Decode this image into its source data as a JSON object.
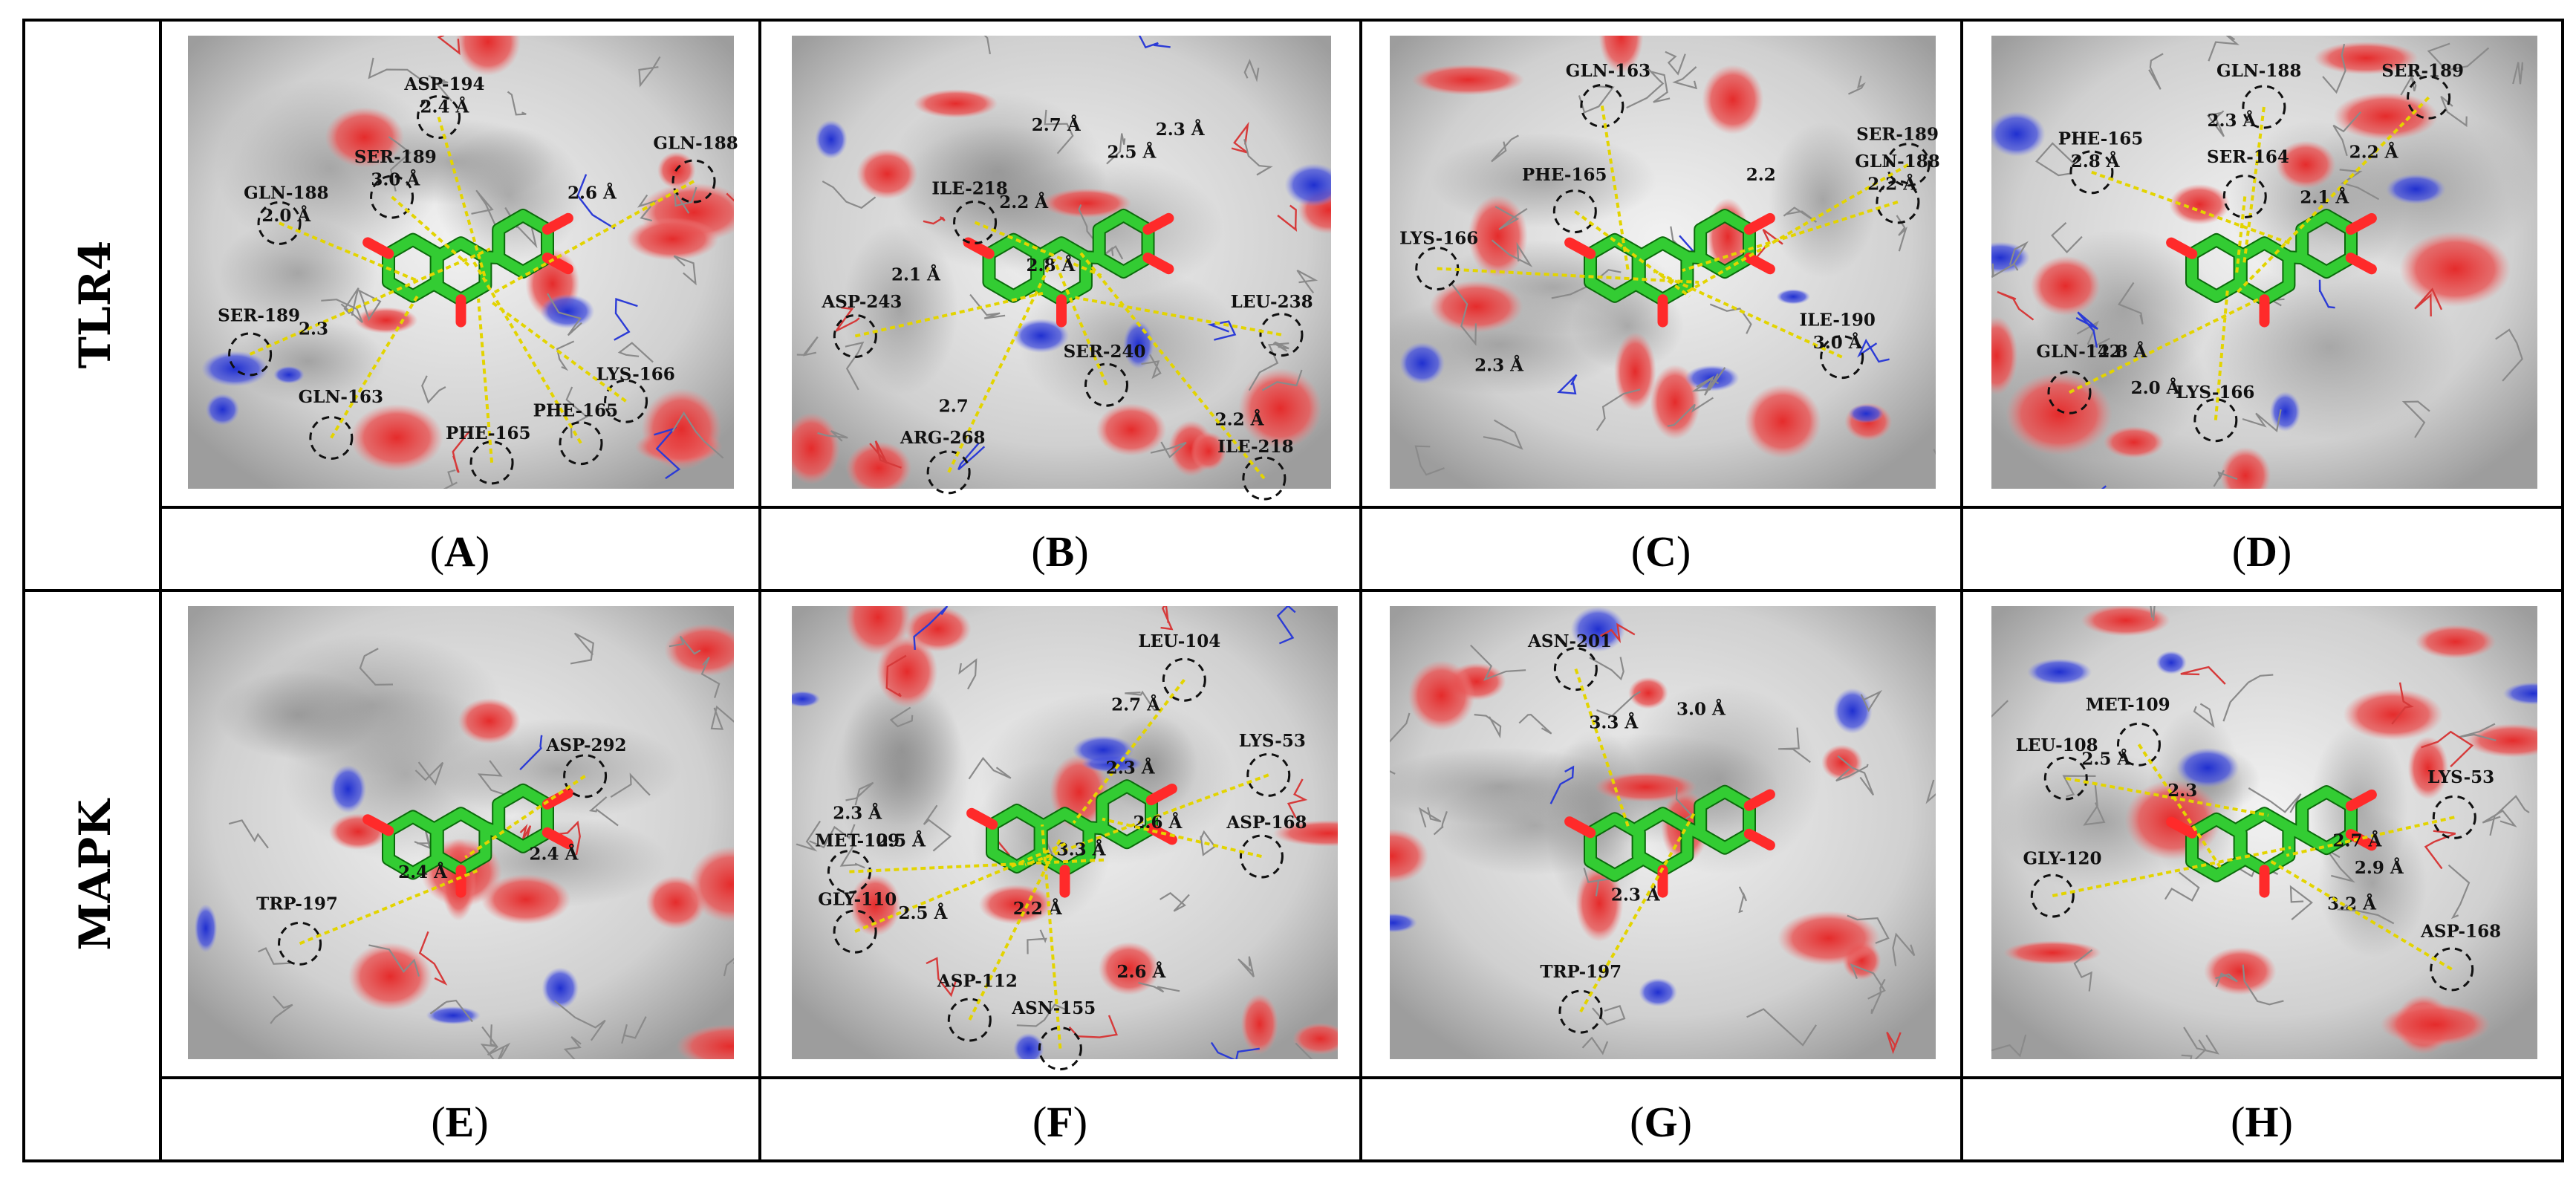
{
  "rows": [
    {
      "title": "TLR4"
    },
    {
      "title": "MAPK"
    }
  ],
  "panels": [
    {
      "label": "A",
      "residues": [
        "ASP-194",
        "2.4 Å",
        "GLN-188",
        "SER-189",
        "3.0 Å",
        "GLN-188",
        "2.0 Å",
        "2.6 Å",
        "SER-189",
        "2.3",
        "GLN-163",
        "PHE-165",
        "PHE-165",
        "LYS-166"
      ]
    },
    {
      "label": "B",
      "residues": [
        "2.5 Å",
        "2.7 Å",
        "2.3 Å",
        "ILE-218",
        "2.2 Å",
        "2.8 Å",
        "ASP-243",
        "2.1 Å",
        "LEU-238",
        "SER-240",
        "2.7",
        "ARG-268",
        "2.2 Å",
        "ILE-218"
      ]
    },
    {
      "label": "C",
      "residues": [
        "GLN-163",
        "SER-189",
        "2.2",
        "GLN-188",
        "2.2 Å",
        "PHE-165",
        "LYS-166",
        "ILE-190",
        "3.0 Å",
        "2.3 Å"
      ]
    },
    {
      "label": "D",
      "residues": [
        "GLN-188",
        "SER-189",
        "2.3 Å",
        "2.2 Å",
        "PHE-165",
        "2.8 Å",
        "SER-164",
        "2.1 Å",
        "GLN-142",
        "2.8 Å",
        "2.0 Å",
        "LYS-166"
      ]
    },
    {
      "label": "E",
      "residues": [
        "ASP-292",
        "2.4 Å",
        "2.4 Å",
        "TRP-197"
      ]
    },
    {
      "label": "F",
      "residues": [
        "LEU-104",
        "2.7 Å",
        "LYS-53",
        "2.3 Å",
        "2.6 Å",
        "ASP-168",
        "2.3 Å",
        "MET-109",
        "2.5 Å",
        "3.3 Å",
        "GLY-110",
        "2.5 Å",
        "2.2 Å",
        "ASP-112",
        "ASN-155",
        "2.6 Å"
      ]
    },
    {
      "label": "G",
      "residues": [
        "ASN-201",
        "3.3 Å",
        "3.0 Å",
        "2.3 Å",
        "TRP-197"
      ]
    },
    {
      "label": "H",
      "residues": [
        "MET-109",
        "LEU-108",
        "2.5 Å",
        "2.3",
        "LYS-53",
        "GLY-120",
        "2.7 Å",
        "2.9 Å",
        "3.2 Å",
        "ASP-168"
      ]
    }
  ],
  "colors": {
    "ligand_carbon": "#33cc33",
    "oxygen": "#ff2a2a",
    "nitrogen": "#2b3bd6",
    "surface_gray": "#d9d9d9",
    "hydrogen_bond": "#e3d400"
  }
}
